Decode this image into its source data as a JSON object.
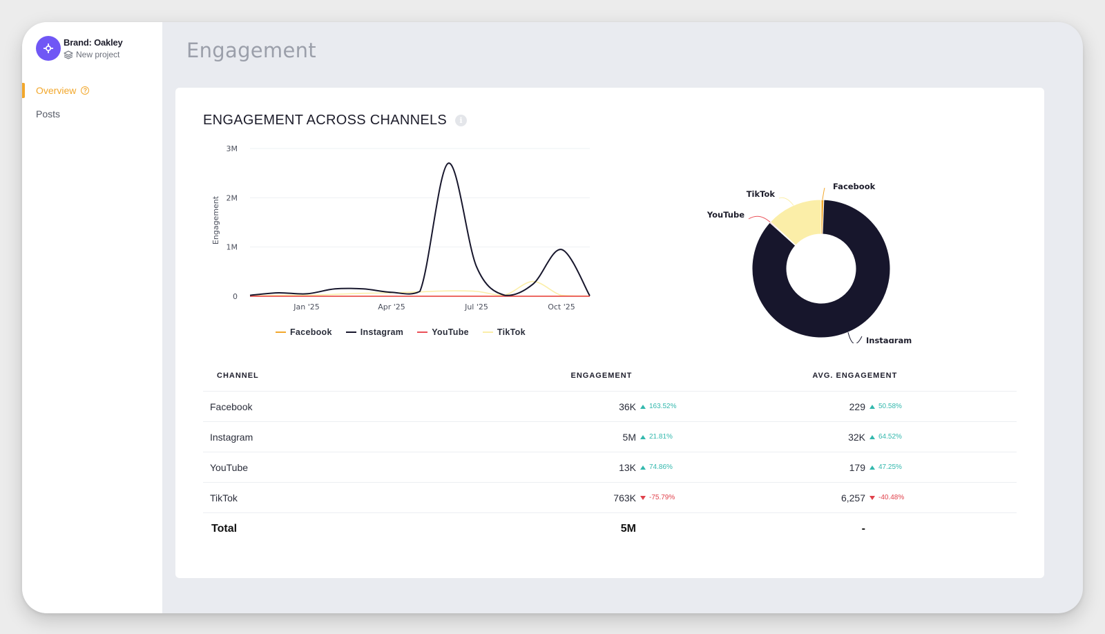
{
  "sidebar": {
    "brand_name": "Brand: Oakley",
    "project": "New project",
    "items": [
      {
        "label": "Overview",
        "active": true,
        "icon": "help-circle-icon"
      },
      {
        "label": "Posts",
        "active": false
      }
    ]
  },
  "header": {
    "title": "Engagement"
  },
  "card": {
    "title": "ENGAGEMENT ACROSS CHANNELS",
    "info_icon": "i"
  },
  "colors": {
    "facebook": "#f2a72b",
    "instagram": "#17162c",
    "youtube": "#ea4f57",
    "tiktok": "#fbeea8",
    "accent": "#f2a72b",
    "brand": "#7057f5"
  },
  "chart_data": [
    {
      "type": "line",
      "title": "",
      "ylabel": "Engagement",
      "xlabel": "",
      "x_ticks": [
        "Jan '25",
        "Apr '25",
        "Jul '25",
        "Oct '25"
      ],
      "y_ticks": [
        "0",
        "1M",
        "2M",
        "3M"
      ],
      "ylim": [
        0,
        3000000
      ],
      "grid": true,
      "legend": "bottom",
      "x": [
        "Nov '24",
        "Dec '24",
        "Jan '25",
        "Feb '25",
        "Mar '25",
        "Apr '25",
        "May '25",
        "Jun '25",
        "Jul '25",
        "Aug '25",
        "Sep '25",
        "Oct '25",
        "Nov '25"
      ],
      "series": [
        {
          "name": "Facebook",
          "values": [
            2000,
            2000,
            3000,
            3000,
            3000,
            3000,
            3000,
            3000,
            3000,
            3000,
            3000,
            3000,
            2000
          ]
        },
        {
          "name": "Instagram",
          "values": [
            20000,
            70000,
            50000,
            150000,
            150000,
            80000,
            100000,
            2700000,
            600000,
            20000,
            250000,
            950000,
            10000
          ]
        },
        {
          "name": "YouTube",
          "values": [
            1000,
            1000,
            1000,
            1000,
            1000,
            1000,
            1000,
            1000,
            1000,
            1000,
            1000,
            1000,
            1000
          ]
        },
        {
          "name": "TikTok",
          "values": [
            5000,
            20000,
            20000,
            40000,
            60000,
            70000,
            90000,
            110000,
            100000,
            30000,
            300000,
            20000,
            5000
          ]
        }
      ]
    },
    {
      "type": "pie",
      "title": "",
      "donut": true,
      "slices": [
        {
          "label": "Facebook",
          "value": 36000
        },
        {
          "label": "Instagram",
          "value": 5000000
        },
        {
          "label": "YouTube",
          "value": 13000
        },
        {
          "label": "TikTok",
          "value": 763000
        }
      ]
    }
  ],
  "table": {
    "headers": [
      "CHANNEL",
      "ENGAGEMENT",
      "AVG. ENGAGEMENT"
    ],
    "rows": [
      {
        "channel": "Facebook",
        "engagement": "36K",
        "eng_delta": "163.52%",
        "eng_dir": "up",
        "avg": "229",
        "avg_delta": "50.58%",
        "avg_dir": "up"
      },
      {
        "channel": "Instagram",
        "engagement": "5M",
        "eng_delta": "21.81%",
        "eng_dir": "up",
        "avg": "32K",
        "avg_delta": "64.52%",
        "avg_dir": "up"
      },
      {
        "channel": "YouTube",
        "engagement": "13K",
        "eng_delta": "74.86%",
        "eng_dir": "up",
        "avg": "179",
        "avg_delta": "47.25%",
        "avg_dir": "up"
      },
      {
        "channel": "TikTok",
        "engagement": "763K",
        "eng_delta": "-75.79%",
        "eng_dir": "down",
        "avg": "6,257",
        "avg_delta": "-40.48%",
        "avg_dir": "down"
      }
    ],
    "total": {
      "label": "Total",
      "engagement": "5M",
      "avg": "-"
    }
  }
}
